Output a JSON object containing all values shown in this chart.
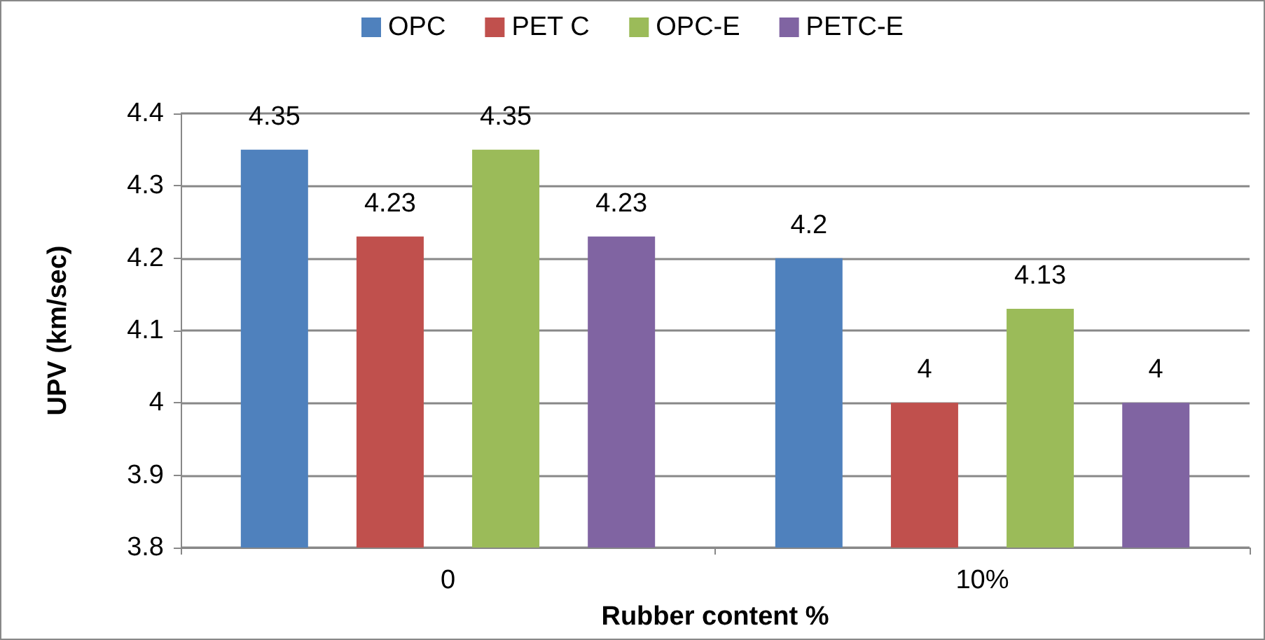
{
  "chart_data": {
    "type": "bar",
    "xlabel": "Rubber content %",
    "ylabel": "UPV (km/sec)",
    "categories": [
      "0",
      "10%"
    ],
    "series": [
      {
        "name": "OPC",
        "color": "#4f81bd",
        "values": [
          4.35,
          4.2
        ]
      },
      {
        "name": "PET C",
        "color": "#c0504d",
        "values": [
          4.23,
          4
        ]
      },
      {
        "name": "OPC-E",
        "color": "#9bbb59",
        "values": [
          4.35,
          4.13
        ]
      },
      {
        "name": "PETC-E",
        "color": "#8064a2",
        "values": [
          4.23,
          4
        ]
      }
    ],
    "ylim": [
      3.8,
      4.4
    ],
    "yticks": [
      3.8,
      3.9,
      4,
      4.1,
      4.2,
      4.3,
      4.4
    ],
    "grid": "y",
    "legend": "top",
    "data_labels": true
  }
}
